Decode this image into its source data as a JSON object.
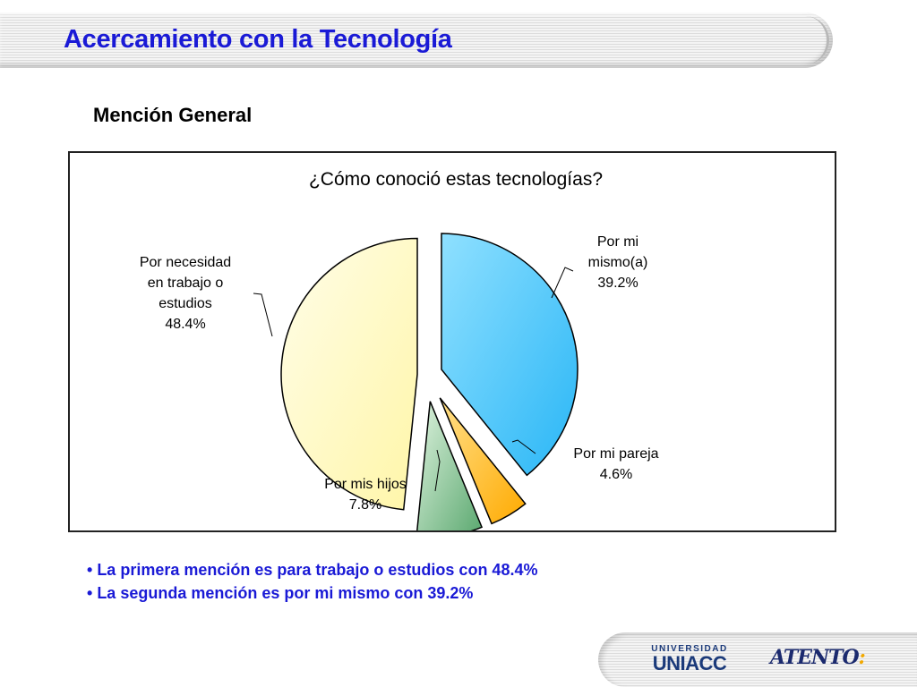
{
  "slide": {
    "title": "Acercamiento con la Tecnología",
    "section": "Mención General"
  },
  "chart_data": {
    "type": "pie",
    "title": "¿Cómo conoció estas tecnologías?",
    "slices": [
      {
        "label_lines": [
          "Por mi",
          "mismo(a)"
        ],
        "value": 39.2,
        "value_label": "39.2%",
        "color": "#29b6f6",
        "color_light": "#8fe0ff"
      },
      {
        "label_lines": [
          "Por mi pareja"
        ],
        "value": 4.6,
        "value_label": "4.6%",
        "color": "#ffaa00",
        "color_light": "#ffe08a"
      },
      {
        "label_lines": [
          "Por mis hijos"
        ],
        "value": 7.8,
        "value_label": "7.8%",
        "color": "#5aa86f",
        "color_light": "#dff3df"
      },
      {
        "label_lines": [
          "Por necesidad",
          "en trabajo o",
          "estudios"
        ],
        "value": 48.4,
        "value_label": "48.4%",
        "color": "#fff6a8",
        "color_light": "#fffde8"
      }
    ],
    "exploded": true,
    "legend": "none"
  },
  "bullets": [
    "La primera  mención es para trabajo o estudios con 48.4%",
    "La segunda mención es por mi mismo con 39.2%"
  ],
  "footer": {
    "logo_university_top": "UNIVERSIDAD",
    "logo_university_bottom": "UNIACC",
    "logo_atento": "ATENTO",
    "logo_atento_colon": ":"
  }
}
